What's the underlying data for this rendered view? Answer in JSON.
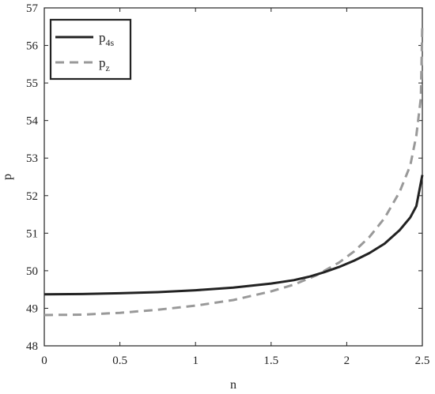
{
  "chart_data": {
    "type": "line",
    "title": "",
    "xlabel": "n",
    "ylabel": "p",
    "xlim": [
      0,
      2.5
    ],
    "ylim": [
      48,
      57
    ],
    "xticks": [
      0,
      0.5,
      1,
      1.5,
      2,
      2.5
    ],
    "xtick_labels": [
      "0",
      "0.5",
      "1",
      "1.5",
      "2",
      "2.5"
    ],
    "yticks": [
      48,
      49,
      50,
      51,
      52,
      53,
      54,
      55,
      56,
      57
    ],
    "ytick_labels": [
      "48",
      "49",
      "50",
      "51",
      "52",
      "53",
      "54",
      "55",
      "56",
      "57"
    ],
    "grid": false,
    "legend_position": "top-left",
    "series": [
      {
        "name": "p4s",
        "label_main": "p",
        "label_sub": "4s",
        "color": "#222222",
        "style": "solid",
        "x": [
          0,
          0.25,
          0.5,
          0.75,
          1.0,
          1.25,
          1.5,
          1.65,
          1.75,
          1.85,
          1.95,
          2.05,
          2.15,
          2.25,
          2.35,
          2.42,
          2.46,
          2.5
        ],
        "y": [
          49.37,
          49.38,
          49.4,
          49.43,
          49.48,
          49.55,
          49.66,
          49.75,
          49.84,
          49.96,
          50.1,
          50.27,
          50.47,
          50.72,
          51.08,
          51.42,
          51.72,
          52.55
        ]
      },
      {
        "name": "pz",
        "label_main": "p",
        "label_sub": "z",
        "color": "#999999",
        "style": "dashed",
        "x": [
          0,
          0.25,
          0.5,
          0.75,
          1.0,
          1.25,
          1.5,
          1.65,
          1.8,
          1.95,
          2.05,
          2.15,
          2.25,
          2.35,
          2.42,
          2.46,
          2.49,
          2.5
        ],
        "y": [
          48.82,
          48.83,
          48.88,
          48.96,
          49.07,
          49.22,
          49.45,
          49.63,
          49.88,
          50.22,
          50.52,
          50.9,
          51.4,
          52.1,
          52.8,
          53.6,
          54.6,
          56.6
        ]
      }
    ]
  }
}
